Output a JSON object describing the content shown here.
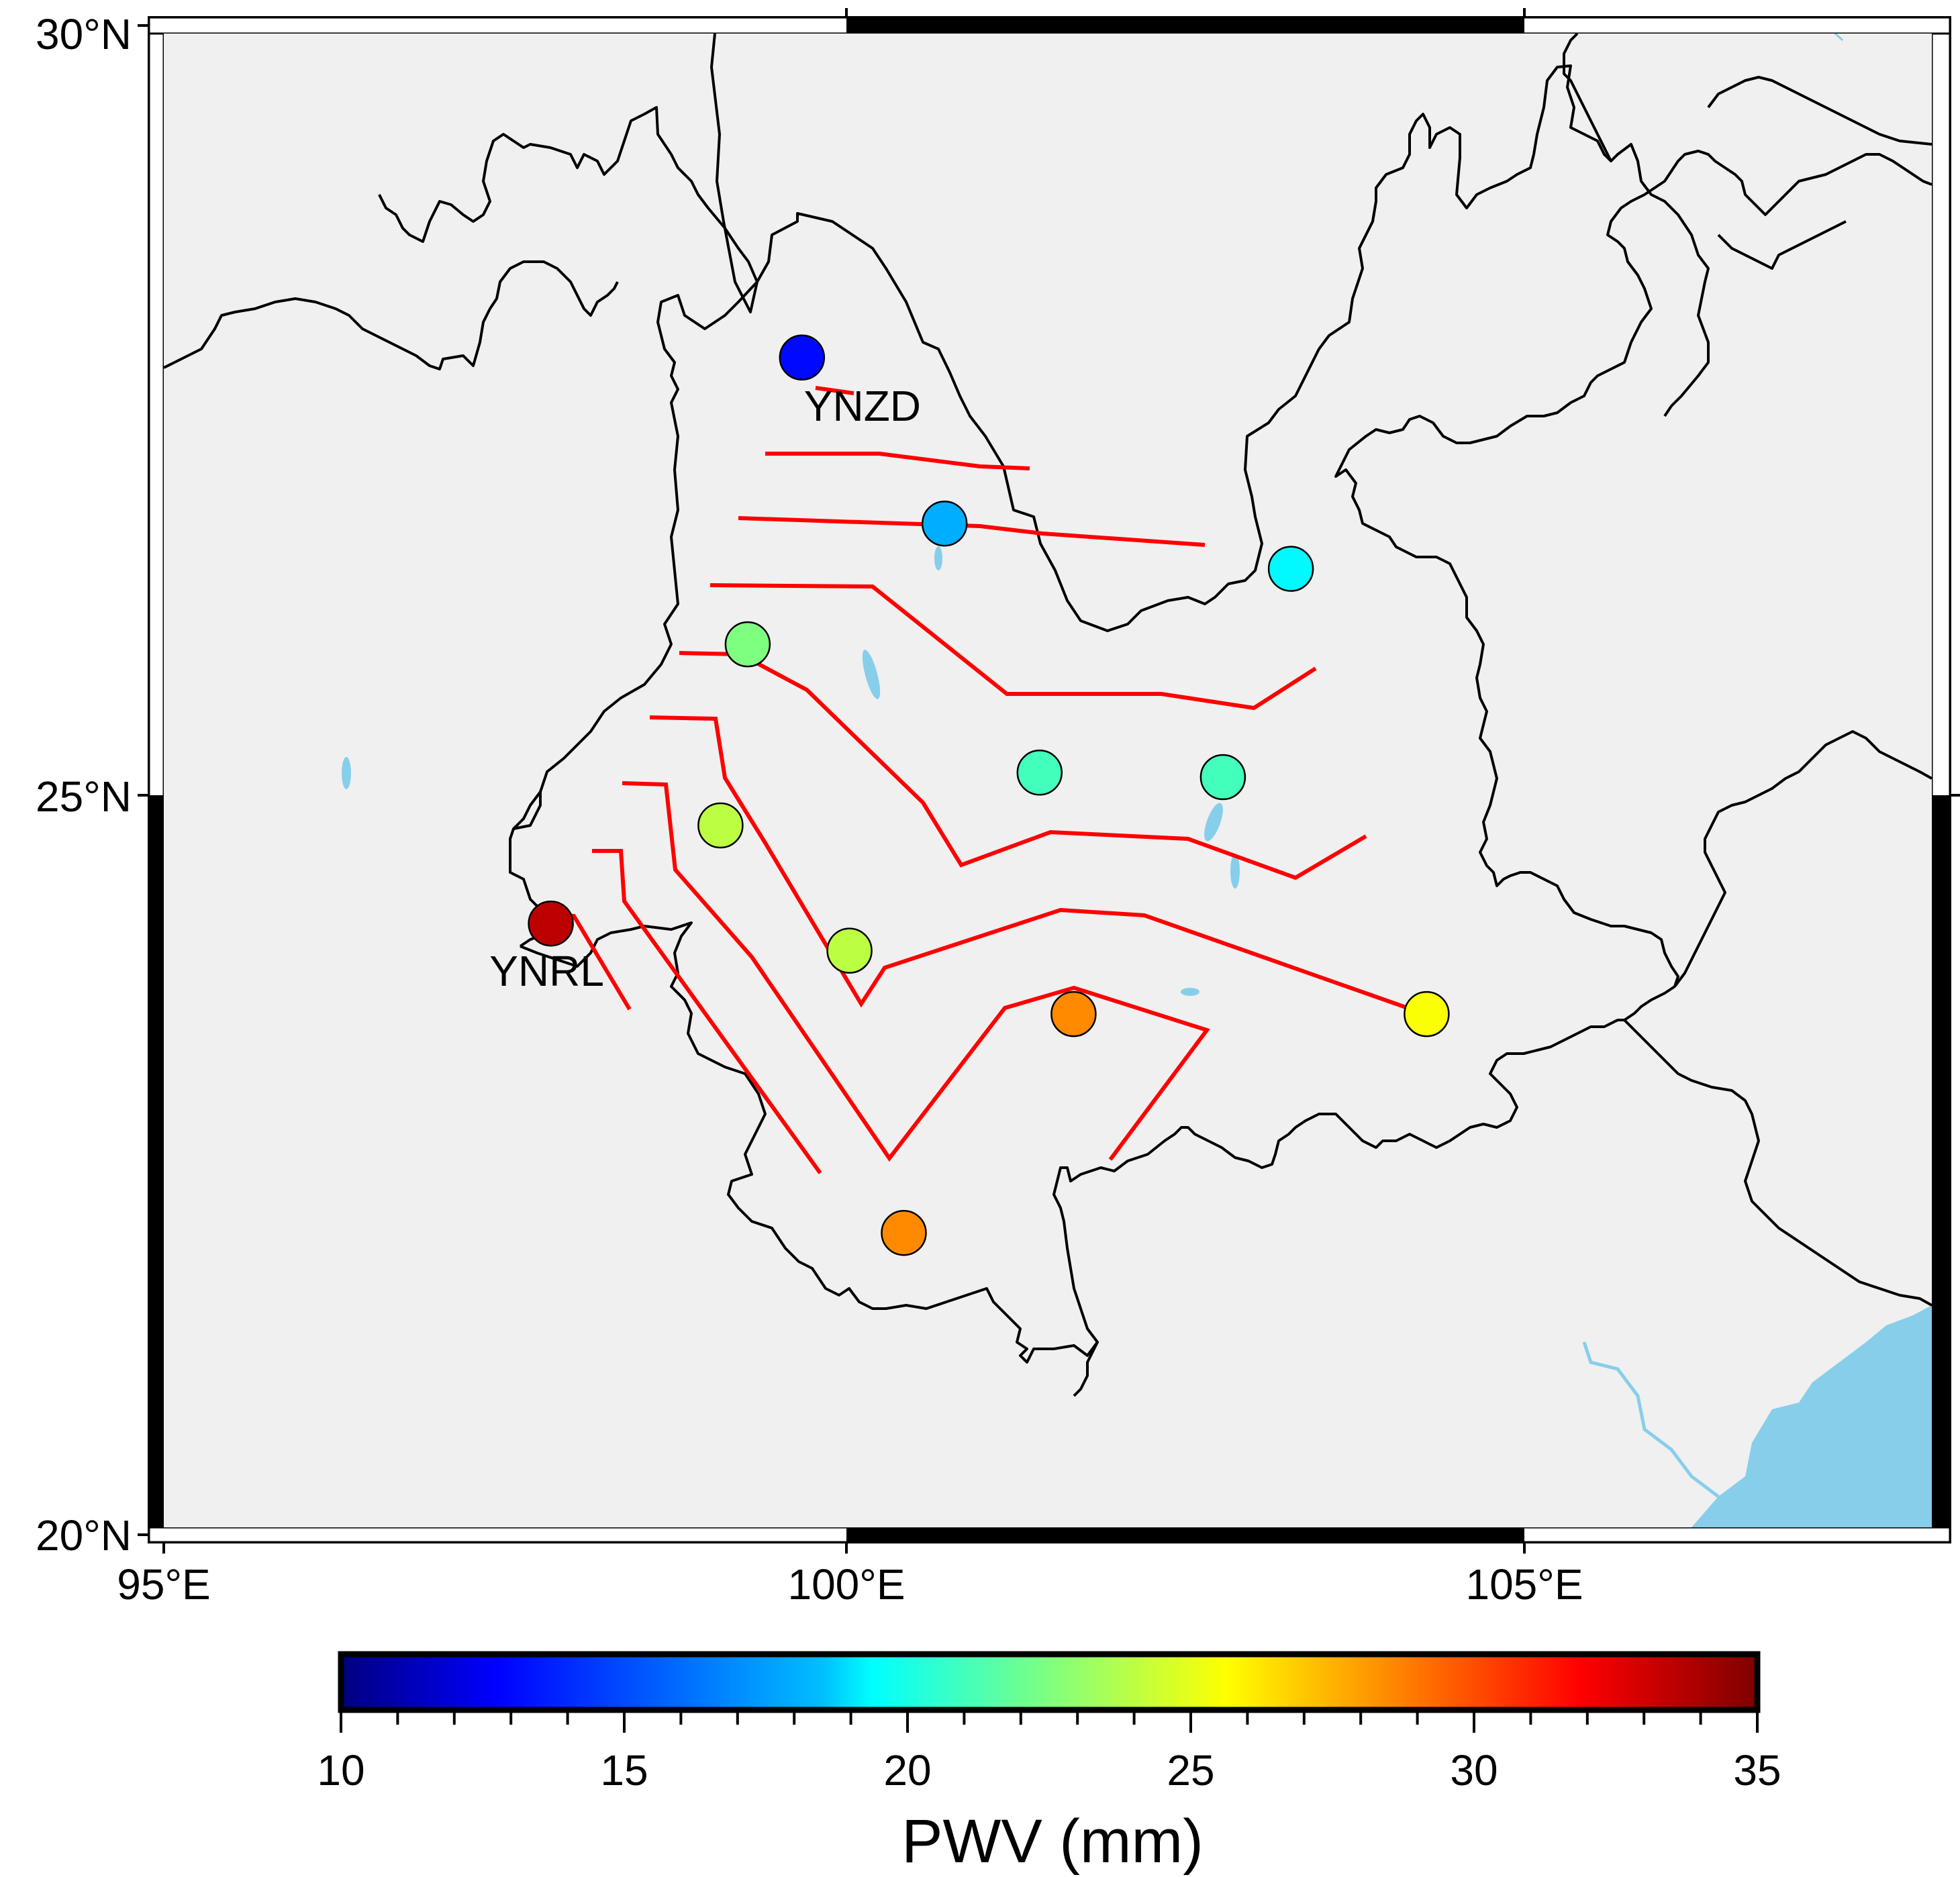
{
  "map": {
    "lat_labels": [
      "30°N",
      "25°N",
      "20°N"
    ],
    "lon_labels": [
      "95°E",
      "100°E",
      "105°E"
    ],
    "extent": {
      "lon": [
        95,
        108
      ],
      "lat": [
        20,
        30
      ]
    }
  },
  "stations": [
    {
      "lon": 99.7,
      "lat": 27.8,
      "pwv": 13.0,
      "label": "YNZD"
    },
    {
      "lon": 100.75,
      "lat": 26.7,
      "pwv": 18.0
    },
    {
      "lon": 103.3,
      "lat": 26.4,
      "pwv": 19.3
    },
    {
      "lon": 99.3,
      "lat": 25.9,
      "pwv": 22.5
    },
    {
      "lon": 101.45,
      "lat": 25.05,
      "pwv": 21.0
    },
    {
      "lon": 102.8,
      "lat": 25.02,
      "pwv": 21.0
    },
    {
      "lon": 99.1,
      "lat": 24.7,
      "pwv": 24.0
    },
    {
      "lon": 100.05,
      "lat": 23.87,
      "pwv": 24.0
    },
    {
      "lon": 97.85,
      "lat": 24.05,
      "pwv": 33.5,
      "label": "YNRL"
    },
    {
      "lon": 101.7,
      "lat": 23.45,
      "pwv": 28.5
    },
    {
      "lon": 104.3,
      "lat": 23.45,
      "pwv": 25.5
    },
    {
      "lon": 100.45,
      "lat": 22.0,
      "pwv": 28.5
    }
  ],
  "colorbar": {
    "min": 10,
    "max": 35,
    "tick_labels": [
      "10",
      "15",
      "20",
      "25",
      "30",
      "35"
    ],
    "title": "PWV (mm)"
  },
  "colors": {
    "land": "#f0f0f0",
    "water": "#87ceeb",
    "contour": "#ff0000",
    "border": "#000000"
  }
}
